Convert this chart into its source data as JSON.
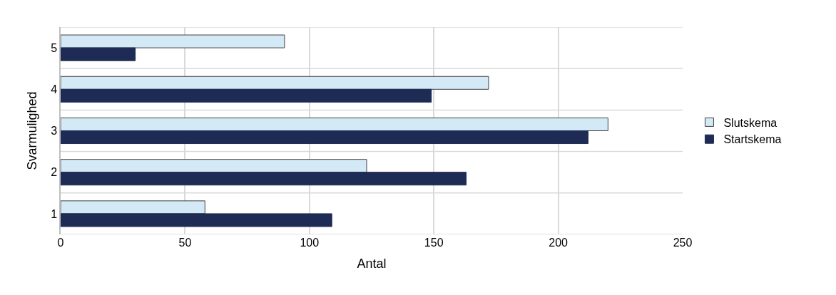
{
  "chart_data": {
    "type": "bar",
    "orientation": "horizontal",
    "xlabel": "Antal",
    "ylabel": "Svarmulighed",
    "categories": [
      "5",
      "4",
      "3",
      "2",
      "1"
    ],
    "series": [
      {
        "name": "Slutskema",
        "color": "#d3e9f6",
        "values": [
          90,
          172,
          220,
          123,
          58
        ]
      },
      {
        "name": "Startskema",
        "color": "#1e2b54",
        "values": [
          30,
          149,
          212,
          163,
          109
        ]
      }
    ],
    "xlim": [
      0,
      250
    ],
    "xticks": [
      0,
      50,
      100,
      150,
      200,
      250
    ],
    "grid": true,
    "legend": "right"
  }
}
